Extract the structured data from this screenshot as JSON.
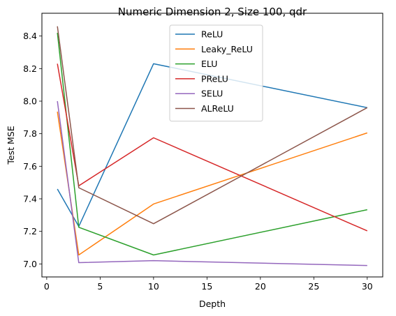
{
  "chart_data": {
    "type": "line",
    "title": "Numeric Dimension 2, Size 100, qdr",
    "xlabel": "Depth",
    "ylabel": "Test MSE",
    "xlim": [
      -0.45,
      31.45
    ],
    "ylim": [
      6.92,
      8.54
    ],
    "xticks": [
      0,
      5,
      10,
      15,
      20,
      25,
      30
    ],
    "yticks": [
      7.0,
      7.2,
      7.4,
      7.6,
      7.8,
      8.0,
      8.2,
      8.4
    ],
    "ytick_labels": [
      "7.0",
      "7.2",
      "7.4",
      "7.6",
      "7.8",
      "8.0",
      "8.2",
      "8.4"
    ],
    "x": [
      1,
      3,
      10,
      30
    ],
    "series": [
      {
        "name": "ReLU",
        "color": "#1f77b4",
        "values": [
          7.46,
          7.23,
          8.23,
          7.96
        ]
      },
      {
        "name": "Leaky_ReLU",
        "color": "#ff7f0e",
        "values": [
          7.935,
          7.055,
          7.368,
          7.805
        ]
      },
      {
        "name": "ELU",
        "color": "#2ca02c",
        "values": [
          8.42,
          7.225,
          7.055,
          7.333
        ]
      },
      {
        "name": "PReLU",
        "color": "#d62728",
        "values": [
          8.23,
          7.48,
          7.775,
          7.203
        ]
      },
      {
        "name": "SELU",
        "color": "#9467bd",
        "values": [
          8.0,
          7.008,
          7.02,
          6.99
        ]
      },
      {
        "name": "ALReLU",
        "color": "#8c564b",
        "values": [
          8.46,
          7.468,
          7.247,
          7.96
        ]
      }
    ],
    "legend_position": "upper-center",
    "grid": false
  }
}
